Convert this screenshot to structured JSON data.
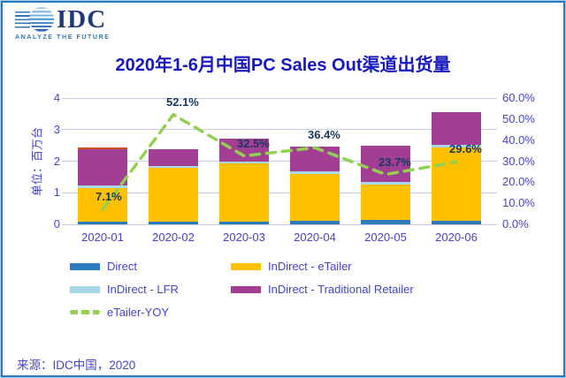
{
  "logo": {
    "brand": "IDC",
    "tagline": "ANALYZE THE FUTURE"
  },
  "source": "来源：IDC中国，2020",
  "style": {
    "title_color": "#1717C0",
    "axis_text_color": "#4444CC",
    "grid_color": "#C7CAEE",
    "data_label_color": "#17375E",
    "frame_border_color": "#2878BE",
    "frame_outer_border_color": "#A9CCE9"
  },
  "chart_data": {
    "type": "bar",
    "stacked": true,
    "grid": true,
    "legend_position": "bottom",
    "title": "2020年1-6月中国PC Sales Out渠道出货量",
    "ylabel_left": "单位：百万台",
    "categories": [
      "2020-01",
      "2020-02",
      "2020-03",
      "2020-04",
      "2020-05",
      "2020-06"
    ],
    "left_axis": {
      "min": 0,
      "max": 4,
      "ticks": [
        0,
        1,
        2,
        3,
        4
      ]
    },
    "right_axis": {
      "min": 0,
      "max": 60,
      "ticks": [
        "0.0%",
        "10.0%",
        "20.0%",
        "30.0%",
        "40.0%",
        "50.0%",
        "60.0%"
      ]
    },
    "first_bar_top_accent": "#CC4E12",
    "series": [
      {
        "name": "Direct",
        "type": "bar",
        "color": "#2E79BC",
        "values": [
          0.08,
          0.08,
          0.09,
          0.11,
          0.13,
          0.11
        ]
      },
      {
        "name": "InDirect - eTailer",
        "type": "bar",
        "color": "#FFC000",
        "values": [
          1.08,
          1.72,
          1.83,
          1.48,
          1.12,
          2.32
        ]
      },
      {
        "name": "InDirect - LFR",
        "type": "bar",
        "color": "#A8D8E8",
        "values": [
          0.07,
          0.06,
          0.08,
          0.1,
          0.08,
          0.09
        ]
      },
      {
        "name": "InDirect - Traditional Retailer",
        "type": "bar",
        "color": "#A23F94",
        "values": [
          1.16,
          0.51,
          0.7,
          0.78,
          1.17,
          1.02
        ]
      },
      {
        "name": "eTailer-YOY",
        "type": "line",
        "dashed": true,
        "axis": "right",
        "color": "#92D050",
        "values": [
          7.1,
          52.1,
          32.5,
          36.4,
          23.7,
          29.6
        ],
        "labels": [
          "7.1%",
          "52.1%",
          "32.5%",
          "36.4%",
          "23.7%",
          "29.6%"
        ]
      }
    ]
  }
}
